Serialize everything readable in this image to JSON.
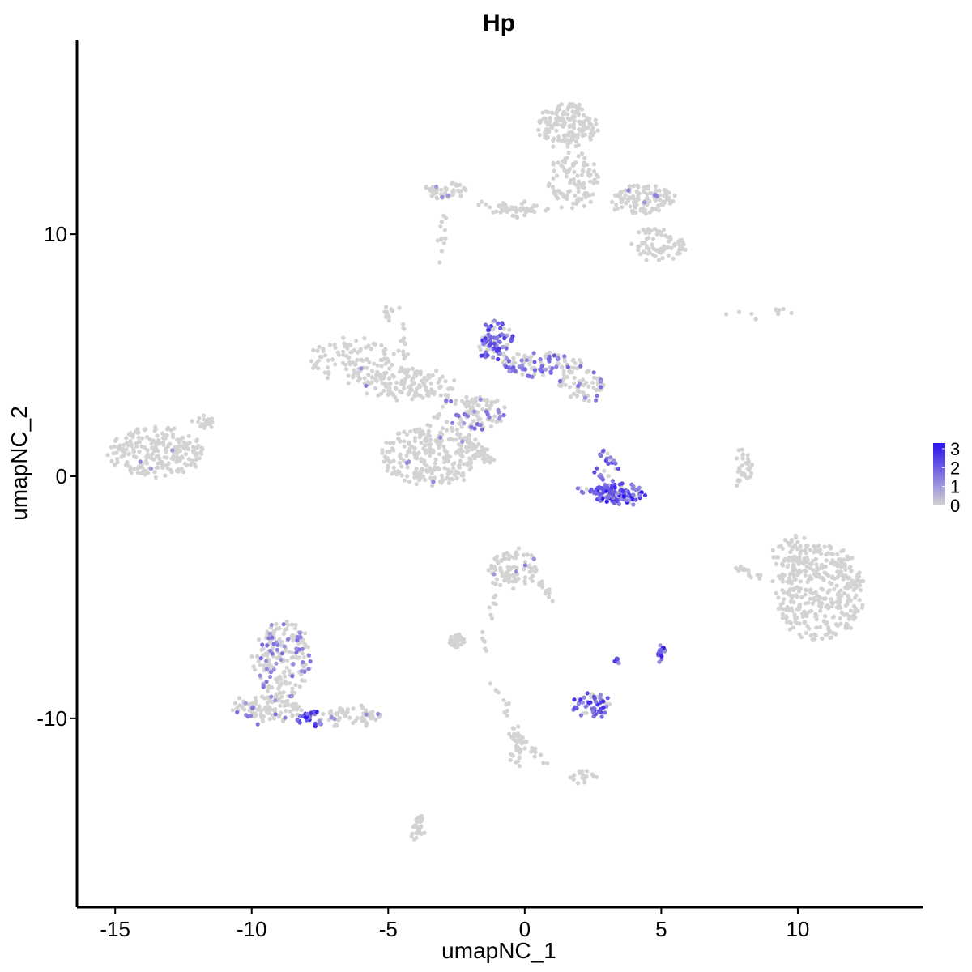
{
  "chart_data": {
    "type": "scatter",
    "title": "Hp",
    "xlabel": "umapNC_1",
    "ylabel": "umapNC_2",
    "xlim": [
      -16.4,
      14.6
    ],
    "ylim": [
      -17.8,
      18.0
    ],
    "x_ticks": [
      -15,
      -10,
      -5,
      0,
      5,
      10
    ],
    "x_tick_labels": [
      "-15",
      "-10",
      "-5",
      "0",
      "5",
      "10"
    ],
    "y_ticks": [
      -10,
      0,
      10
    ],
    "y_tick_labels": [
      "-10",
      "0",
      "10"
    ],
    "grid": false,
    "legend": {
      "position": "right",
      "min": 0,
      "max": 3.3,
      "ticks": [
        0,
        1,
        2,
        3
      ],
      "tick_labels": [
        "0",
        "1",
        "2",
        "3"
      ],
      "low_color": "#d3d3d3",
      "high_color": "#2a12ee"
    },
    "clusters": [
      {
        "cx": -13.5,
        "cy": 1.0,
        "rx": 1.8,
        "ry": 1.0,
        "n": 220,
        "expr": 0.02
      },
      {
        "cx": -11.8,
        "cy": 2.2,
        "rx": 0.4,
        "ry": 0.5,
        "n": 18,
        "expr": 0.0
      },
      {
        "cx": -6.3,
        "cy": 4.8,
        "rx": 1.5,
        "ry": 0.9,
        "n": 110,
        "expr": 0.02
      },
      {
        "cx": -4.2,
        "cy": 3.8,
        "rx": 1.7,
        "ry": 0.6,
        "n": 130,
        "expr": 0.03
      },
      {
        "cx": -3.5,
        "cy": 0.8,
        "rx": 1.7,
        "ry": 1.3,
        "n": 260,
        "expr": 0.02
      },
      {
        "cx": -4.9,
        "cy": 6.7,
        "rx": 0.3,
        "ry": 0.3,
        "n": 14,
        "expr": 0.0
      },
      {
        "cx": -2.0,
        "cy": 2.6,
        "rx": 1.3,
        "ry": 0.7,
        "n": 110,
        "expr": 0.15
      },
      {
        "cx": -1.1,
        "cy": 5.6,
        "rx": 0.6,
        "ry": 0.8,
        "n": 90,
        "expr": 0.6
      },
      {
        "cx": 0.6,
        "cy": 4.6,
        "rx": 1.5,
        "ry": 0.5,
        "n": 110,
        "expr": 0.3
      },
      {
        "cx": 2.1,
        "cy": 3.8,
        "rx": 0.8,
        "ry": 0.7,
        "n": 60,
        "expr": 0.18
      },
      {
        "cx": 1.6,
        "cy": 14.5,
        "rx": 1.1,
        "ry": 0.9,
        "n": 160,
        "expr": 0.0
      },
      {
        "cx": 1.8,
        "cy": 12.2,
        "rx": 0.9,
        "ry": 1.2,
        "n": 100,
        "expr": 0.0
      },
      {
        "cx": 4.4,
        "cy": 11.4,
        "rx": 1.2,
        "ry": 0.6,
        "n": 120,
        "expr": 0.02
      },
      {
        "cx": 4.9,
        "cy": 9.6,
        "rx": 1.1,
        "ry": 0.6,
        "n": 80,
        "expr": 0.0
      },
      {
        "cx": -2.9,
        "cy": 11.8,
        "rx": 0.9,
        "ry": 0.3,
        "n": 50,
        "expr": 0.02
      },
      {
        "cx": -0.2,
        "cy": 11.0,
        "rx": 1.2,
        "ry": 0.25,
        "n": 28,
        "expr": 0.0
      },
      {
        "cx": 3.4,
        "cy": -0.7,
        "rx": 1.0,
        "ry": 0.4,
        "n": 110,
        "expr": 0.8
      },
      {
        "cx": 3.0,
        "cy": 0.4,
        "rx": 0.4,
        "ry": 0.6,
        "n": 30,
        "expr": 0.55
      },
      {
        "cx": 10.8,
        "cy": -4.8,
        "rx": 1.6,
        "ry": 2.0,
        "n": 360,
        "expr": 0.0
      },
      {
        "cx": 9.9,
        "cy": -3.2,
        "rx": 0.8,
        "ry": 0.7,
        "n": 60,
        "expr": 0.0
      },
      {
        "cx": -0.4,
        "cy": -3.8,
        "rx": 0.9,
        "ry": 0.8,
        "n": 80,
        "expr": 0.05
      },
      {
        "cx": -2.5,
        "cy": -6.8,
        "rx": 0.3,
        "ry": 0.2,
        "n": 30,
        "expr": 0.0
      },
      {
        "cx": -8.9,
        "cy": -7.6,
        "rx": 1.0,
        "ry": 1.6,
        "n": 200,
        "expr": 0.15
      },
      {
        "cx": -9.4,
        "cy": -9.6,
        "rx": 1.3,
        "ry": 0.5,
        "n": 110,
        "expr": 0.08
      },
      {
        "cx": -6.4,
        "cy": -9.9,
        "rx": 1.2,
        "ry": 0.4,
        "n": 60,
        "expr": 0.02
      },
      {
        "cx": -7.8,
        "cy": -10.0,
        "rx": 0.45,
        "ry": 0.3,
        "n": 24,
        "expr": 0.95
      },
      {
        "cx": 2.4,
        "cy": -9.4,
        "rx": 0.7,
        "ry": 0.5,
        "n": 60,
        "expr": 0.6
      },
      {
        "cx": 5.0,
        "cy": -7.3,
        "rx": 0.15,
        "ry": 0.25,
        "n": 16,
        "expr": 0.85
      },
      {
        "cx": 3.4,
        "cy": -7.6,
        "rx": 0.1,
        "ry": 0.1,
        "n": 6,
        "expr": 0.95
      },
      {
        "cx": -3.9,
        "cy": -14.6,
        "rx": 0.2,
        "ry": 0.6,
        "n": 30,
        "expr": 0.0
      },
      {
        "cx": 2.2,
        "cy": -12.4,
        "rx": 0.5,
        "ry": 0.2,
        "n": 20,
        "expr": 0.0
      },
      {
        "cx": -0.3,
        "cy": -11.2,
        "rx": 0.3,
        "ry": 0.9,
        "n": 30,
        "expr": 0.0
      },
      {
        "cx": 8.1,
        "cy": 0.4,
        "rx": 0.2,
        "ry": 0.6,
        "n": 20,
        "expr": 0.0
      },
      {
        "cx": 9.5,
        "cy": 6.8,
        "rx": 0.3,
        "ry": 0.15,
        "n": 6,
        "expr": 0.0
      }
    ],
    "arms": [
      {
        "x0": -4.5,
        "y0": 6.2,
        "x1": -4.4,
        "y1": 3.5,
        "n": 20,
        "expr": 0.0
      },
      {
        "x0": -2.2,
        "y0": 1.5,
        "x1": -1.4,
        "y1": 0.7,
        "n": 18,
        "expr": 0.0
      },
      {
        "x0": -1.4,
        "y0": 0.7,
        "x1": -1.3,
        "y1": 0.6,
        "n": 5,
        "expr": 0.0
      },
      {
        "x0": -2.2,
        "y0": 1.8,
        "x1": -1.2,
        "y1": 0.7,
        "n": 20,
        "expr": 0.0
      },
      {
        "x0": -2.0,
        "y0": 11.3,
        "x1": 0.5,
        "y1": 11.0,
        "n": 26,
        "expr": 0.0
      },
      {
        "x0": -3.0,
        "y0": 10.8,
        "x1": -3.1,
        "y1": 8.7,
        "n": 12,
        "expr": 0.0
      },
      {
        "x0": 7.7,
        "y0": -3.8,
        "x1": 9.2,
        "y1": -4.3,
        "n": 16,
        "expr": 0.0
      },
      {
        "x0": -1.0,
        "y0": -4.2,
        "x1": -1.5,
        "y1": -7.2,
        "n": 16,
        "expr": 0.0
      },
      {
        "x0": 0.6,
        "y0": -4.4,
        "x1": 1.1,
        "y1": -5.4,
        "n": 12,
        "expr": 0.0
      },
      {
        "x0": -0.7,
        "y0": -10.2,
        "x1": 0.9,
        "y1": -12.0,
        "n": 18,
        "expr": 0.0
      },
      {
        "x0": -1.1,
        "y0": -8.6,
        "x1": -0.3,
        "y1": -10.5,
        "n": 10,
        "expr": 0.0
      },
      {
        "x0": 7.9,
        "y0": 1.1,
        "x1": 7.8,
        "y1": -0.4,
        "n": 12,
        "expr": 0.0
      },
      {
        "x0": 6.9,
        "y0": 6.9,
        "x1": 8.6,
        "y1": 6.6,
        "n": 5,
        "expr": 0.0
      },
      {
        "x0": 1.9,
        "y0": -0.5,
        "x1": 3.5,
        "y1": -1.0,
        "n": 20,
        "expr": 0.4
      }
    ]
  }
}
